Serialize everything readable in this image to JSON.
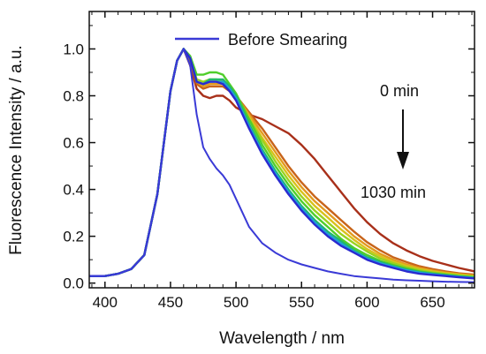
{
  "chart_data": {
    "type": "line",
    "title": "",
    "xlabel": "Wavelength / nm",
    "ylabel": "Fluorescence Intensity / a.u.",
    "xlim": [
      388,
      682
    ],
    "ylim": [
      -0.02,
      1.16
    ],
    "x_ticks": [
      400,
      450,
      500,
      550,
      600,
      650
    ],
    "y_ticks": [
      0.0,
      0.2,
      0.4,
      0.6,
      0.8,
      1.0
    ],
    "x_tick_labels": [
      "400",
      "450",
      "500",
      "550",
      "600",
      "650"
    ],
    "y_tick_labels": [
      "0.0",
      "0.2",
      "0.4",
      "0.6",
      "0.8",
      "1.0"
    ],
    "grid": false,
    "legend_position": "top-center",
    "legend": [
      {
        "label": "Before Smearing",
        "color": "#3a3ad6"
      }
    ],
    "annotations": {
      "start_label": "0 min",
      "end_label": "1030 min"
    },
    "x": [
      388,
      400,
      410,
      420,
      430,
      440,
      450,
      455,
      460,
      465,
      470,
      475,
      480,
      485,
      490,
      495,
      500,
      510,
      520,
      530,
      540,
      550,
      560,
      570,
      580,
      590,
      600,
      610,
      620,
      630,
      640,
      650,
      660,
      670,
      682
    ],
    "series": [
      {
        "name": "Before Smearing",
        "color": "#3a3ad6",
        "values": [
          0.03,
          0.03,
          0.04,
          0.06,
          0.12,
          0.38,
          0.82,
          0.95,
          1.0,
          0.93,
          0.72,
          0.58,
          0.53,
          0.49,
          0.46,
          0.42,
          0.36,
          0.24,
          0.17,
          0.13,
          0.1,
          0.08,
          0.065,
          0.05,
          0.04,
          0.03,
          0.025,
          0.02,
          0.015,
          0.012,
          0.01,
          0.008,
          0.006,
          0.005,
          0.004
        ]
      },
      {
        "color": "#2a2ad0",
        "values": [
          0.03,
          0.03,
          0.04,
          0.06,
          0.12,
          0.38,
          0.82,
          0.95,
          1.0,
          0.96,
          0.86,
          0.85,
          0.86,
          0.86,
          0.85,
          0.82,
          0.78,
          0.66,
          0.55,
          0.46,
          0.38,
          0.31,
          0.25,
          0.2,
          0.16,
          0.13,
          0.1,
          0.08,
          0.065,
          0.05,
          0.04,
          0.035,
          0.03,
          0.025,
          0.02
        ]
      },
      {
        "color": "#1f9fd8",
        "values": [
          0.03,
          0.03,
          0.04,
          0.06,
          0.12,
          0.38,
          0.82,
          0.95,
          1.0,
          0.96,
          0.86,
          0.85,
          0.86,
          0.86,
          0.86,
          0.83,
          0.79,
          0.67,
          0.56,
          0.47,
          0.39,
          0.32,
          0.26,
          0.21,
          0.17,
          0.135,
          0.105,
          0.085,
          0.07,
          0.055,
          0.045,
          0.038,
          0.032,
          0.027,
          0.022
        ]
      },
      {
        "color": "#22b86a",
        "values": [
          0.03,
          0.03,
          0.04,
          0.06,
          0.12,
          0.38,
          0.82,
          0.95,
          1.0,
          0.96,
          0.86,
          0.85,
          0.87,
          0.87,
          0.87,
          0.84,
          0.8,
          0.68,
          0.57,
          0.48,
          0.4,
          0.33,
          0.27,
          0.22,
          0.18,
          0.14,
          0.11,
          0.09,
          0.072,
          0.058,
          0.047,
          0.04,
          0.034,
          0.028,
          0.023
        ]
      },
      {
        "color": "#4fce2a",
        "values": [
          0.03,
          0.03,
          0.04,
          0.06,
          0.12,
          0.38,
          0.82,
          0.95,
          1.0,
          0.97,
          0.89,
          0.89,
          0.9,
          0.9,
          0.89,
          0.85,
          0.81,
          0.7,
          0.59,
          0.5,
          0.42,
          0.35,
          0.29,
          0.24,
          0.19,
          0.15,
          0.12,
          0.095,
          0.077,
          0.062,
          0.05,
          0.042,
          0.036,
          0.03,
          0.025
        ]
      },
      {
        "color": "#9ad21f",
        "values": [
          0.03,
          0.03,
          0.04,
          0.06,
          0.12,
          0.38,
          0.82,
          0.95,
          1.0,
          0.96,
          0.87,
          0.86,
          0.87,
          0.87,
          0.86,
          0.83,
          0.8,
          0.7,
          0.61,
          0.52,
          0.44,
          0.37,
          0.31,
          0.26,
          0.21,
          0.17,
          0.135,
          0.105,
          0.085,
          0.068,
          0.055,
          0.046,
          0.039,
          0.033,
          0.028
        ]
      },
      {
        "color": "#d8c21c",
        "values": [
          0.03,
          0.03,
          0.04,
          0.06,
          0.12,
          0.38,
          0.82,
          0.95,
          1.0,
          0.96,
          0.86,
          0.85,
          0.86,
          0.86,
          0.85,
          0.83,
          0.8,
          0.71,
          0.62,
          0.54,
          0.46,
          0.39,
          0.33,
          0.28,
          0.23,
          0.185,
          0.145,
          0.115,
          0.092,
          0.074,
          0.06,
          0.05,
          0.042,
          0.036,
          0.03
        ]
      },
      {
        "color": "#e39a1e",
        "values": [
          0.03,
          0.03,
          0.04,
          0.06,
          0.12,
          0.38,
          0.82,
          0.95,
          1.0,
          0.96,
          0.86,
          0.84,
          0.85,
          0.85,
          0.85,
          0.83,
          0.8,
          0.72,
          0.64,
          0.56,
          0.48,
          0.41,
          0.35,
          0.3,
          0.25,
          0.2,
          0.16,
          0.125,
          0.1,
          0.08,
          0.065,
          0.054,
          0.045,
          0.038,
          0.032
        ]
      },
      {
        "color": "#c8641a",
        "values": [
          0.03,
          0.03,
          0.04,
          0.06,
          0.12,
          0.38,
          0.82,
          0.95,
          1.0,
          0.95,
          0.85,
          0.83,
          0.84,
          0.84,
          0.84,
          0.82,
          0.8,
          0.73,
          0.66,
          0.58,
          0.5,
          0.43,
          0.37,
          0.32,
          0.27,
          0.22,
          0.175,
          0.14,
          0.11,
          0.09,
          0.072,
          0.06,
          0.05,
          0.042,
          0.036
        ]
      },
      {
        "color": "#a8301a",
        "values": [
          0.03,
          0.03,
          0.04,
          0.06,
          0.12,
          0.38,
          0.82,
          0.95,
          1.0,
          0.93,
          0.83,
          0.8,
          0.79,
          0.8,
          0.8,
          0.78,
          0.75,
          0.72,
          0.7,
          0.67,
          0.64,
          0.59,
          0.53,
          0.46,
          0.39,
          0.32,
          0.26,
          0.21,
          0.17,
          0.14,
          0.115,
          0.095,
          0.08,
          0.065,
          0.05
        ]
      }
    ]
  }
}
